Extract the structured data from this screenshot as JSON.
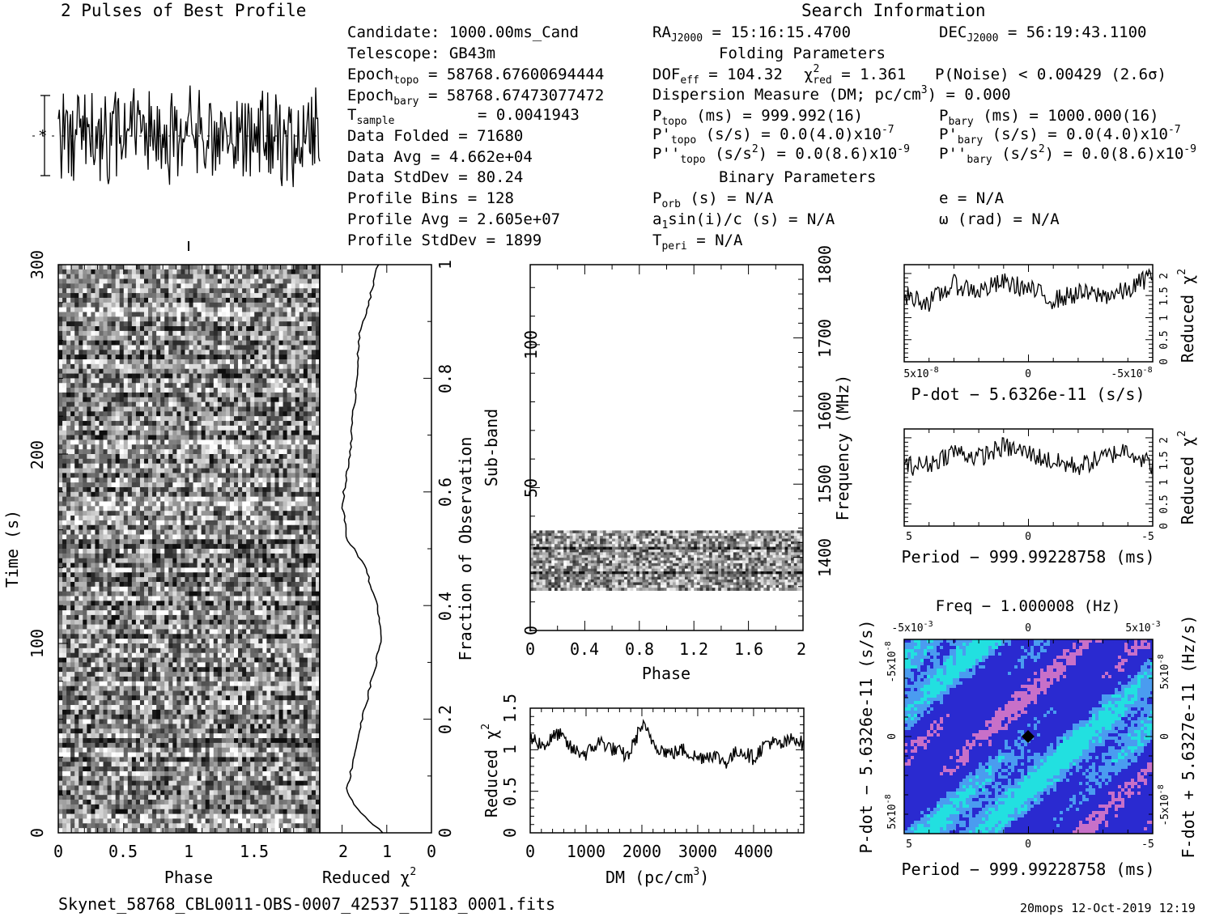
{
  "header": {
    "best_profile_title": "2 Pulses of Best Profile",
    "search_info_title": "Search Information",
    "folding_params_title": "Folding Parameters",
    "binary_params_title": "Binary Parameters",
    "filename": "Skynet_58768_CBL0011-OBS-0007_42537_51183_0001.fits",
    "stamp": "20mops 12-Oct-2019 12:19"
  },
  "info_left": {
    "candidate": "Candidate:  1000.00ms_Cand",
    "telescope": "Telescope:  GB43m",
    "epoch_topo_value": " = 58768.67600694444",
    "epoch_bary_value": " = 58768.67473077472",
    "tsample_value": "= 0.0041943",
    "data_folded": "Data Folded    =  71680",
    "data_avg": "Data Avg       =  4.662e+04",
    "data_stddev": "Data StdDev    =  80.24",
    "profile_bins": "Profile Bins   =  128",
    "profile_avg": "Profile Avg    =  2.605e+07",
    "profile_stddev": "Profile StdDev =  1899"
  },
  "info_right": {
    "ra_value": " = 15:16:15.4700",
    "dec_value": " = 56:19:43.1100",
    "dof_value": " = 104.32",
    "chi2_value": " = 1.361",
    "pnoise": "P(Noise) < 0.00429   (2.6σ)",
    "dm_line": "Dispersion Measure (DM; pc/cm",
    "dm_value": ") = 0.000",
    "p_topo_value": " (ms) =  999.992(16)",
    "p_bary_value": " (ms) =  1000.000(16)",
    "pd_topo_value": " (s/s) = 0.0(4.0)x10",
    "pd_bary_value": " (s/s) = 0.0(4.0)x10",
    "pdd_topo_value": " (s/s",
    "pdd_topo_tail": ") = 0.0(8.6)x10",
    "pdd_bary_value": " (s/s",
    "pdd_bary_tail": ") = 0.0(8.6)x10",
    "exp_pd": "-7",
    "exp_pdd": "-9",
    "porb": " (s) = N/A",
    "a1sini": "a",
    "a1sini_tail": "sin(i)/c (s) = N/A",
    "tperi": " = N/A",
    "ecc": "e = N/A",
    "omega": "ω (rad) = N/A"
  },
  "chart_data": [
    {
      "id": "time-phase",
      "type": "heatmap",
      "xlabel": "Phase",
      "ylabel": "Time (s)",
      "xlim": [
        0,
        2
      ],
      "ylim": [
        0,
        300
      ],
      "xticks": [
        "0",
        "0.5",
        "1",
        "1.5"
      ],
      "yticks": [
        "0",
        "100",
        "200",
        "300"
      ]
    },
    {
      "id": "time-chi2",
      "type": "line",
      "xlabel": "Reduced χ",
      "ylabel": "Fraction of Observation",
      "xlim": [
        2.5,
        0
      ],
      "ylim": [
        0,
        1
      ],
      "xticks": [
        "2",
        "1",
        "0"
      ],
      "yticks": [
        "0",
        "0.2",
        "0.4",
        "0.6",
        "0.8",
        "1"
      ],
      "x": [
        1.1,
        1.65,
        1.9,
        1.75,
        1.55,
        1.3,
        1.12,
        1.2,
        1.5,
        1.9,
        2.0,
        1.85,
        1.7,
        1.6,
        1.35,
        1.2
      ],
      "y": [
        0,
        0.04,
        0.07,
        0.13,
        0.2,
        0.28,
        0.34,
        0.4,
        0.47,
        0.52,
        0.58,
        0.65,
        0.78,
        0.88,
        0.95,
        1.0
      ]
    },
    {
      "id": "best-profile",
      "type": "line",
      "title": "2 Pulses of Best Profile",
      "xlim": [
        0,
        2
      ]
    },
    {
      "id": "subband-phase",
      "type": "heatmap",
      "xlabel": "Phase",
      "ylabel": "Sub-band",
      "y2label": "Frequency (MHz)",
      "xlim": [
        0,
        2
      ],
      "ylim": [
        0,
        128
      ],
      "y2lim": [
        1300,
        1800
      ],
      "xticks": [
        "0",
        "0.4",
        "0.8",
        "1.2",
        "1.6",
        "2"
      ],
      "yticks": [
        "0",
        "50",
        "100"
      ],
      "y2ticks": [
        "1400",
        "1500",
        "1600",
        "1700",
        "1800"
      ],
      "band_range": [
        14,
        35
      ]
    },
    {
      "id": "dm-chi2",
      "type": "line",
      "xlabel": "DM (pc/cm",
      "ylabel": "Reduced χ",
      "xlim": [
        0,
        4900
      ],
      "ylim": [
        0,
        1.5
      ],
      "xticks": [
        "0",
        "1000",
        "2000",
        "3000",
        "4000"
      ],
      "yticks": [
        "0",
        "0.5",
        "1",
        "1.5"
      ],
      "x": [
        0,
        250,
        500,
        750,
        1000,
        1250,
        1500,
        1750,
        2000,
        2250,
        2500,
        2750,
        3000,
        3250,
        3500,
        3750,
        4000,
        4250,
        4500,
        4750,
        4900
      ],
      "y": [
        1.15,
        1.05,
        1.2,
        1.0,
        0.95,
        1.1,
        1.0,
        0.92,
        1.3,
        1.05,
        0.95,
        1.0,
        0.9,
        0.95,
        0.85,
        1.0,
        0.9,
        1.1,
        1.05,
        1.15,
        1.05
      ]
    },
    {
      "id": "pdot-chi2",
      "type": "line",
      "xlabel": "P-dot − 5.6326e-11 (s/s)",
      "ylabel": "Reduced χ",
      "ylim": [
        0,
        2.2
      ],
      "xticks": [
        "5x10",
        "0",
        "-5x10"
      ],
      "xtick_exp": "-8",
      "yticks": [
        "0",
        "0.5",
        "1",
        "1.5",
        "2"
      ],
      "x": [
        5,
        4,
        3,
        2,
        1,
        0,
        -1,
        -2,
        -3,
        -4,
        -5
      ],
      "y": [
        1.5,
        1.35,
        1.75,
        1.6,
        1.8,
        1.65,
        1.4,
        1.55,
        1.5,
        1.6,
        2.0
      ]
    },
    {
      "id": "period-chi2",
      "type": "line",
      "xlabel": "Period − 999.99228758 (ms)",
      "ylabel": "Reduced χ",
      "ylim": [
        0,
        2.2
      ],
      "xticks": [
        "5",
        "0",
        "-5"
      ],
      "yticks": [
        "0",
        "0.5",
        "1",
        "1.5",
        "2"
      ],
      "x": [
        5,
        4,
        3,
        2,
        1,
        0,
        -1,
        -2,
        -3,
        -4,
        -5
      ],
      "y": [
        1.35,
        1.4,
        1.7,
        1.55,
        1.8,
        1.65,
        1.45,
        1.35,
        1.55,
        1.75,
        1.35
      ]
    },
    {
      "id": "p-pdot-plane",
      "type": "heatmap",
      "title": "Freq − 1.000008 (Hz)",
      "xlabel": "Period − 999.99228758 (ms)",
      "ylabel": "P-dot − 5.6326e-11 (s/s)",
      "y2label": "F-dot + 5.6327e-11 (Hz/s)",
      "xticks": [
        "5",
        "0",
        "-5"
      ],
      "topticks": [
        "-5x10",
        "0",
        "5x10"
      ],
      "topticks_exp": "-3",
      "yticks": [
        "-5x10",
        "0",
        "5x10"
      ],
      "ytick_exp": "-8",
      "y2ticks": [
        "5x10",
        "0",
        "-5x10"
      ],
      "y2tick_exp": "-8",
      "colors": [
        "#2a2ad0",
        "#4a9cf0",
        "#22e0e0",
        "#c870c8"
      ]
    }
  ]
}
